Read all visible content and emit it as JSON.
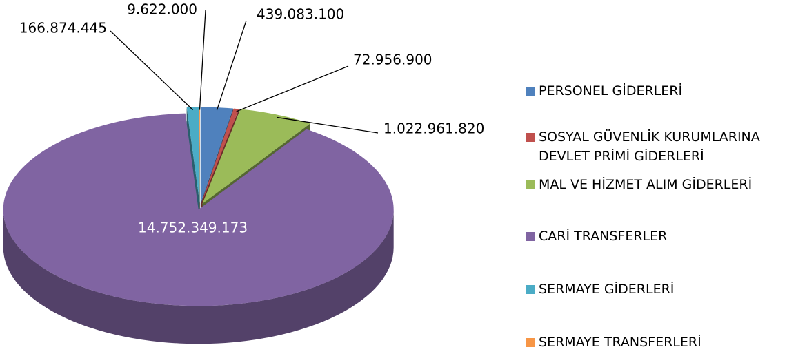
{
  "chart_data": {
    "type": "pie",
    "categories": [
      "PERSONEL GİDERLERİ",
      "SOSYAL GÜVENLİK KURUMLARINA DEVLET PRİMİ GİDERLERİ",
      "MAL VE HİZMET ALIM GİDERLERİ",
      "CARİ TRANSFERLER",
      "SERMAYE GİDERLERİ",
      "SERMAYE TRANSFERLERİ"
    ],
    "values": [
      439083100,
      72956900,
      1022961820,
      14752349173,
      166874445,
      9622000
    ],
    "value_labels": [
      "439.083.100",
      "72.956.900",
      "1.022.961.820",
      "14.752.349.173",
      "166.874.445",
      "9.622.000"
    ],
    "colors": [
      "#4f81bd",
      "#c0504d",
      "#9bbb59",
      "#8064a2",
      "#4bacc6",
      "#f79646"
    ],
    "legend": "right"
  }
}
